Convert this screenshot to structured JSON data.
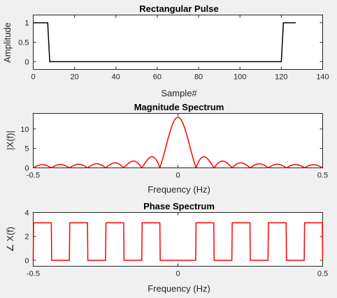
{
  "chart_data": [
    {
      "type": "line",
      "title": "Rectangular Pulse",
      "xlabel": "Sample#",
      "ylabel": "Amplitude",
      "xlim": [
        0,
        140
      ],
      "ylim": [
        -0.2,
        1.2
      ],
      "xticks": [
        "0",
        "20",
        "40",
        "60",
        "80",
        "100",
        "120",
        "140"
      ],
      "yticks": [
        "0",
        "0.5",
        "1"
      ],
      "grid": false,
      "color": "#000000",
      "series": [
        {
          "x": [
            0,
            7,
            8,
            120,
            121,
            127
          ],
          "values": [
            1,
            1,
            0,
            0,
            1,
            1
          ]
        }
      ]
    },
    {
      "type": "line",
      "title": "Magnitude Spectrum",
      "xlabel": "Frequency (Hz)",
      "ylabel": "|X(f)|",
      "xlim": [
        -0.5,
        0.5
      ],
      "ylim": [
        0,
        14
      ],
      "xticks": [
        "-0.5",
        "0",
        "0.5"
      ],
      "yticks": [
        "0",
        "5",
        "10"
      ],
      "grid": false,
      "color": "#ff0000",
      "series": [
        {
          "peak": 13,
          "mainlobe_halfwidth": 0.0625,
          "n": 16
        }
      ]
    },
    {
      "type": "line",
      "title": "Phase Spectrum",
      "xlabel": "Frequency (Hz)",
      "ylabel": "∠ X(f)",
      "xlim": [
        -0.5,
        0.5
      ],
      "ylim": [
        -0.5,
        4
      ],
      "xticks": [
        "-0.5",
        "0",
        "0.5"
      ],
      "yticks": [
        "0",
        "2",
        "4"
      ],
      "grid": false,
      "color": "#ff0000",
      "series": [
        {
          "high": 3.1416,
          "low": 0,
          "mainlobe_halfwidth": 0.0625,
          "n": 16
        }
      ]
    }
  ]
}
